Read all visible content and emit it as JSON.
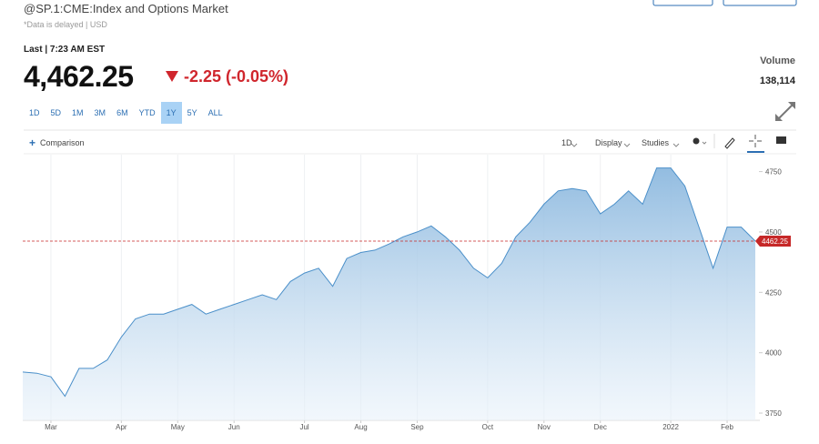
{
  "header": {
    "title": "@SP.1:CME:Index and Options Market",
    "note": "*Data is delayed | USD",
    "last": "Last | 7:23 AM EST",
    "price": "4,462.25",
    "change": "-2.25 (-0.05%)",
    "volume_label": "Volume",
    "volume": "138,114"
  },
  "ranges": {
    "items": [
      "1D",
      "5D",
      "1M",
      "3M",
      "6M",
      "YTD",
      "1Y",
      "5Y",
      "ALL"
    ],
    "active": "1Y"
  },
  "toolbar": {
    "comparison": "Comparison",
    "interval": "1D",
    "display": "Display",
    "studies": "Studies"
  },
  "chart_data": {
    "type": "area",
    "color": "#4a8fc9",
    "grid": "x",
    "categories": [
      null,
      null,
      "Mar",
      null,
      null,
      null,
      null,
      "Apr",
      null,
      null,
      null,
      "May",
      null,
      null,
      null,
      "Jun",
      null,
      null,
      null,
      null,
      "Jul",
      null,
      null,
      null,
      "Aug",
      null,
      null,
      null,
      "Sep",
      null,
      null,
      null,
      null,
      "Oct",
      null,
      null,
      null,
      "Nov",
      null,
      null,
      null,
      "Dec",
      null,
      null,
      null,
      null,
      "2022",
      null,
      null,
      null,
      "Feb",
      null,
      null
    ],
    "values": [
      3920,
      3915,
      3900,
      3820,
      3935,
      3935,
      3970,
      4065,
      4140,
      4160,
      4160,
      4180,
      4200,
      4160,
      4180,
      4200,
      4220,
      4240,
      4220,
      4295,
      4330,
      4350,
      4275,
      4390,
      4415,
      4425,
      4450,
      4480,
      4500,
      4525,
      4480,
      4425,
      4350,
      4310,
      4370,
      4480,
      4540,
      4615,
      4670,
      4680,
      4670,
      4575,
      4615,
      4670,
      4615,
      4765,
      4765,
      4690,
      4520,
      4350,
      4520,
      4520,
      4462.25
    ],
    "ylim": [
      3720,
      4820
    ],
    "yticks": [
      3750,
      4000,
      4250,
      4500,
      4750
    ],
    "reference_line": {
      "value": 4462.25,
      "label": "4462.25",
      "color": "#c62828"
    }
  }
}
